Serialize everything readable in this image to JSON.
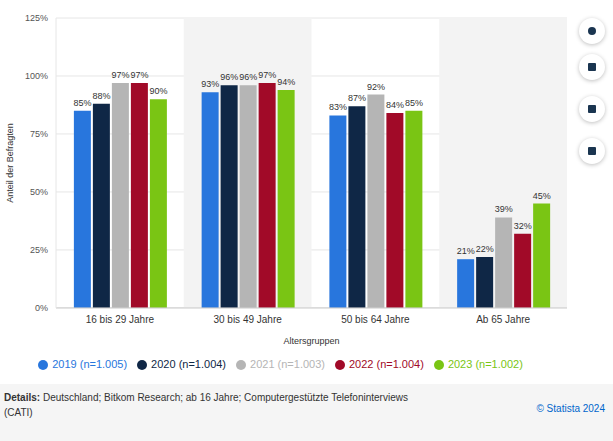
{
  "chart_data": {
    "type": "bar",
    "x_label": "Altersgruppen",
    "y_label": "Anteil der Befragten",
    "categories": [
      "16 bis 29 Jahre",
      "30 bis 49 Jahre",
      "50 bis 64 Jahre",
      "Ab 65 Jahre"
    ],
    "series": [
      {
        "name": "2019 (n=1.005)",
        "color": "#2876dd",
        "values": [
          85,
          93,
          83,
          21
        ],
        "value_labels": [
          "85%",
          "93%",
          "83%",
          "21%"
        ]
      },
      {
        "name": "2020 (n=1.004)",
        "color": "#0f2746",
        "values": [
          88,
          96,
          87,
          22
        ],
        "value_labels": [
          "88%",
          "96%",
          "87%",
          "22%"
        ]
      },
      {
        "name": "2021 (n=1.003)",
        "color": "#b5b5b5",
        "values": [
          97,
          96,
          92,
          39
        ],
        "value_labels": [
          "97%",
          "96%",
          "92%",
          "39%"
        ]
      },
      {
        "name": "2022 (n=1.004)",
        "color": "#a10a28",
        "values": [
          97,
          97,
          84,
          32
        ],
        "value_labels": [
          "97%",
          "97%",
          "84%",
          "32%"
        ]
      },
      {
        "name": "2023 (n=1.002)",
        "color": "#7ac514",
        "values": [
          90,
          94,
          85,
          45
        ],
        "value_labels": [
          "90%",
          "94%",
          "85%",
          "45%"
        ]
      }
    ],
    "ylim": [
      0,
      125
    ],
    "yticks": [
      {
        "value": 0,
        "label": "0%"
      },
      {
        "value": 25,
        "label": "25%"
      },
      {
        "value": 50,
        "label": "50%"
      },
      {
        "value": 75,
        "label": "75%"
      },
      {
        "value": 100,
        "label": "100%"
      },
      {
        "value": 125,
        "label": "125%"
      }
    ],
    "grid": true,
    "legend": "bottom",
    "data_labels": true,
    "annotations": [
      "Details:",
      "Deutschland; Bitkom Research; ab 16 Jahre; Computergestützte Telefoninterviews (CATI)",
      "© Statista 2024"
    ]
  }
}
